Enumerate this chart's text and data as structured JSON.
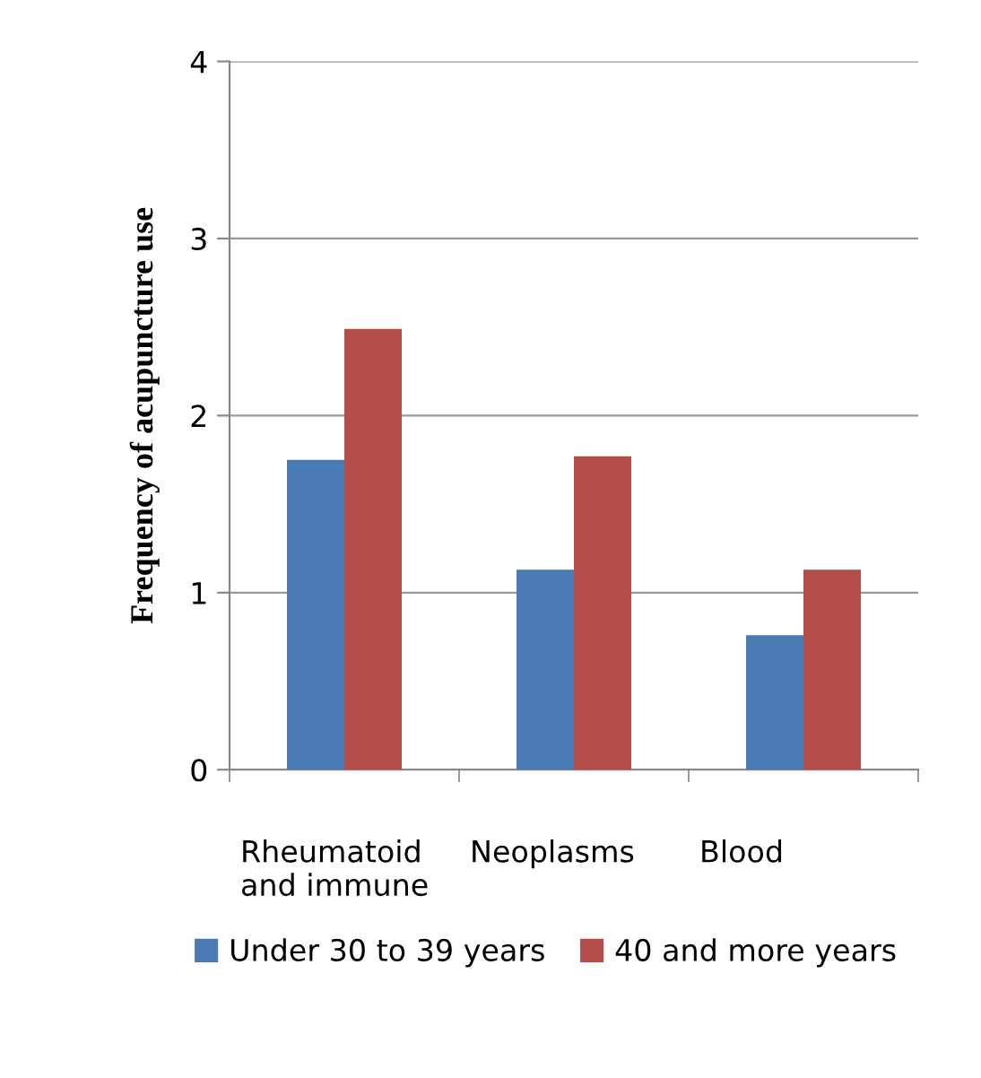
{
  "chart_data": {
    "type": "bar",
    "ylabel": "Frequency of acupuncture use",
    "categories": [
      "Rheumatoid\nand immune",
      "Neoplasms",
      "Blood"
    ],
    "series": [
      {
        "name": "Under 30 to 39 years",
        "color": "#4a7ab4",
        "values": [
          1.75,
          1.13,
          0.76
        ]
      },
      {
        "name": "40 and more years",
        "color": "#b34d49",
        "values": [
          2.49,
          1.77,
          1.13
        ]
      }
    ],
    "ylim": [
      0,
      4
    ],
    "yticks": [
      0,
      1,
      2,
      3,
      4
    ],
    "grid": "y",
    "legend": "bottom"
  }
}
